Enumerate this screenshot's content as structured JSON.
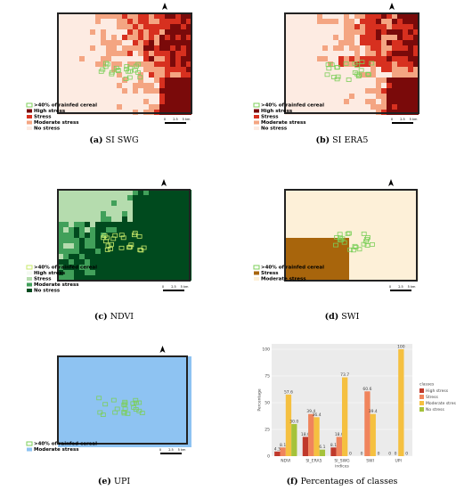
{
  "panels": [
    {
      "label": "(a)",
      "caption": "SI SWG",
      "legend": [
        {
          "text": ">40% of rainfed cereal",
          "color": "#7ccf5a"
        },
        {
          "text": "High stress",
          "color": "#7a0a0a"
        },
        {
          "text": "Stress",
          "color": "#d7301f"
        },
        {
          "text": "Moderate stress",
          "color": "#f4a582"
        },
        {
          "text": "No stress",
          "color": "#fdebe2"
        }
      ],
      "scale": [
        "0",
        "2.5",
        "5 km"
      ]
    },
    {
      "label": "(b)",
      "caption": "SI ERA5",
      "legend": [
        {
          "text": ">40% of rainfed cereal",
          "color": "#7ccf5a"
        },
        {
          "text": "High stress",
          "color": "#7a0a0a"
        },
        {
          "text": "Stress",
          "color": "#d7301f"
        },
        {
          "text": "Moderate stress",
          "color": "#f4a582"
        },
        {
          "text": "No stress",
          "color": "#fdebe2"
        }
      ],
      "scale": [
        "0",
        "2.5",
        "5 km"
      ]
    },
    {
      "label": "(c)",
      "caption": "NDVI",
      "legend": [
        {
          "text": ">40% of rainfed cereal",
          "color": "#c8e86a"
        },
        {
          "text": "High stress",
          "color": "#f3faf0"
        },
        {
          "text": "Stress",
          "color": "#b5dcae"
        },
        {
          "text": "Moderate stress",
          "color": "#41a05a"
        },
        {
          "text": "No stress",
          "color": "#004a1e"
        }
      ],
      "scale": [
        "0",
        "2.5",
        "5 km"
      ]
    },
    {
      "label": "(d)",
      "caption": "SWI",
      "legend": [
        {
          "text": ">40% of rainfed cereal",
          "color": "#7ccf5a"
        },
        {
          "text": "Stress",
          "color": "#a8650c"
        },
        {
          "text": "Moderate stress",
          "color": "#fdf0d8"
        }
      ],
      "scale": [
        "0",
        "2.5",
        "5 km"
      ]
    },
    {
      "label": "(e)",
      "caption": "UPI",
      "legend": [
        {
          "text": ">40% of rainfed cereal",
          "color": "#7ccf5a"
        },
        {
          "text": "Moderate stress",
          "color": "#8ec3f2"
        }
      ],
      "scale": [
        "0",
        "2.5",
        "5 km"
      ]
    }
  ],
  "chart_data": {
    "type": "bar",
    "label": "(f)",
    "caption": "Percentages of classes",
    "x_label": "indices",
    "y_label": "Percentage",
    "legend_title": "classes",
    "categories": [
      "NDVI",
      "SI_ERA5",
      "SI_SWG",
      "SWI",
      "UPI"
    ],
    "series": [
      {
        "name": "High stress",
        "color": "#c0392b",
        "values": [
          4.3,
          18.0,
          8.1,
          0,
          0
        ],
        "value_labels": [
          "4.3",
          "18.0",
          "8.1",
          "0",
          "0"
        ]
      },
      {
        "name": "Stress",
        "color": "#f0845c",
        "values": [
          8.1,
          39.4,
          18.0,
          60.6,
          0
        ],
        "value_labels": [
          "8.1",
          "39.4",
          "18.0",
          "60.6",
          "0"
        ]
      },
      {
        "name": "Moderate stress",
        "color": "#f5c040",
        "values": [
          57.6,
          36.4,
          73.7,
          39.4,
          100
        ],
        "value_labels": [
          "57.6",
          "36.4",
          "73.7",
          "39.4",
          "100"
        ]
      },
      {
        "name": "No stress",
        "color": "#a5c23a",
        "values": [
          30.0,
          6.1,
          0,
          0,
          0
        ],
        "value_labels": [
          "30.0",
          "6.1",
          "0",
          "0",
          "0"
        ]
      }
    ],
    "ylim": [
      0,
      105
    ],
    "yticks": [
      0,
      25,
      50,
      75,
      100
    ],
    "grid": true,
    "legend": "right"
  }
}
